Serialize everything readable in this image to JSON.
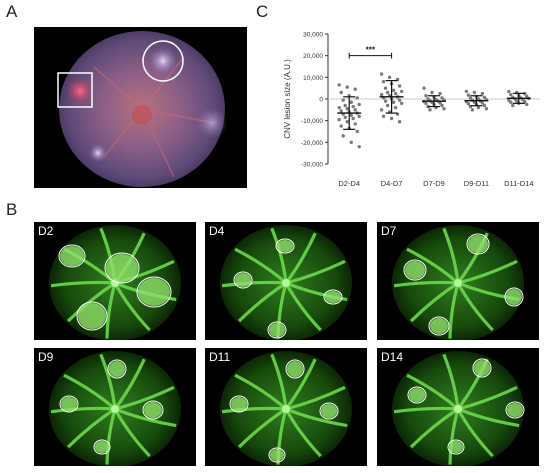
{
  "panels": {
    "a": "A",
    "b": "B",
    "c": "C"
  },
  "angiograms": [
    "D2",
    "D4",
    "D7",
    "D9",
    "D11",
    "D14"
  ],
  "chart_data": {
    "type": "scatter",
    "ylabel": "CNV lesion size (A.U.)",
    "xlabel": "",
    "categories": [
      "D2-D4",
      "D4-D7",
      "D7-D9",
      "D9-D11",
      "D11-D14"
    ],
    "yticks": [
      "-30,000",
      "-20,000",
      "-10,000",
      "0",
      "10,000",
      "20,000",
      "30,000"
    ],
    "ylim": [
      -30000,
      30000
    ],
    "significance": {
      "label": "***",
      "between": [
        "D2-D4",
        "D4-D7"
      ]
    },
    "series": [
      {
        "category": "D2-D4",
        "mean": -6500,
        "sd": 7500,
        "values": [
          6500,
          5500,
          4500,
          3000,
          1500,
          500,
          -500,
          -1500,
          -2500,
          -3000,
          -3500,
          -4000,
          -4500,
          -5000,
          -5500,
          -6000,
          -6500,
          -7000,
          -7500,
          -8000,
          -8500,
          -9000,
          -9500,
          -10500,
          -11500,
          -12500,
          -13500,
          -15000,
          -17000,
          -20000,
          -22000
        ]
      },
      {
        "category": "D4-D7",
        "mean": 1000,
        "sd": 7500,
        "values": [
          11500,
          10000,
          9000,
          8000,
          7000,
          6000,
          5000,
          4000,
          3500,
          3000,
          2500,
          2000,
          1500,
          1000,
          500,
          0,
          -500,
          -1000,
          -1500,
          -2000,
          -3000,
          -4000,
          -5000,
          -6000,
          -7000,
          -8000,
          -9000,
          -10500
        ]
      },
      {
        "category": "D7-D9",
        "mean": -1000,
        "sd": 2500,
        "values": [
          5000,
          3000,
          2500,
          1500,
          1000,
          500,
          0,
          -200,
          -500,
          -800,
          -1000,
          -1200,
          -1500,
          -1800,
          -2000,
          -2500,
          -3000,
          -3500,
          -4000,
          -4500,
          -5000
        ]
      },
      {
        "category": "D9-D11",
        "mean": -800,
        "sd": 2300,
        "values": [
          3500,
          3000,
          2500,
          1800,
          1200,
          800,
          400,
          0,
          -300,
          -600,
          -900,
          -1200,
          -1500,
          -1800,
          -2200,
          -2600,
          -3000,
          -3500,
          -4000,
          -4500,
          -5000
        ]
      },
      {
        "category": "D11-D14",
        "mean": 300,
        "sd": 2300,
        "values": [
          3500,
          3000,
          2500,
          2000,
          1500,
          1200,
          800,
          500,
          200,
          0,
          -300,
          -600,
          -900,
          -1200,
          -1500,
          -2000,
          -2500,
          -3000
        ]
      }
    ],
    "grid": false,
    "legend": "none"
  }
}
